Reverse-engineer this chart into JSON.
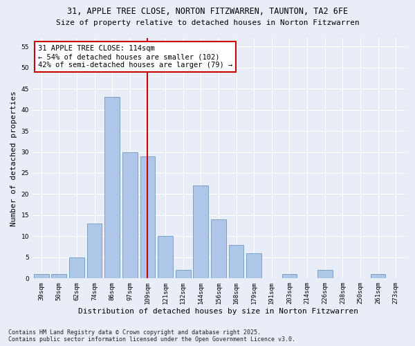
{
  "title_line1": "31, APPLE TREE CLOSE, NORTON FITZWARREN, TAUNTON, TA2 6FE",
  "title_line2": "Size of property relative to detached houses in Norton Fitzwarren",
  "xlabel": "Distribution of detached houses by size in Norton Fitzwarren",
  "ylabel": "Number of detached properties",
  "bar_labels": [
    "39sqm",
    "50sqm",
    "62sqm",
    "74sqm",
    "86sqm",
    "97sqm",
    "109sqm",
    "121sqm",
    "132sqm",
    "144sqm",
    "156sqm",
    "168sqm",
    "179sqm",
    "191sqm",
    "203sqm",
    "214sqm",
    "226sqm",
    "238sqm",
    "250sqm",
    "261sqm",
    "273sqm"
  ],
  "bar_values": [
    1,
    1,
    5,
    13,
    43,
    30,
    29,
    10,
    2,
    22,
    14,
    8,
    6,
    0,
    1,
    0,
    2,
    0,
    0,
    1,
    0
  ],
  "bar_color": "#aec6e8",
  "bar_edge_color": "#5b8db8",
  "background_color": "#e8edf8",
  "grid_color": "#ffffff",
  "vline_x": 6.0,
  "vline_color": "#cc0000",
  "annotation_text": "31 APPLE TREE CLOSE: 114sqm\n← 54% of detached houses are smaller (102)\n42% of semi-detached houses are larger (79) →",
  "annotation_box_facecolor": "#ffffff",
  "annotation_box_edgecolor": "#cc0000",
  "ylim": [
    0,
    57
  ],
  "yticks": [
    0,
    5,
    10,
    15,
    20,
    25,
    30,
    35,
    40,
    45,
    50,
    55
  ],
  "footnote": "Contains HM Land Registry data © Crown copyright and database right 2025.\nContains public sector information licensed under the Open Government Licence v3.0.",
  "title_fontsize": 8.5,
  "subtitle_fontsize": 8,
  "xlabel_fontsize": 8,
  "ylabel_fontsize": 8,
  "tick_fontsize": 6.5,
  "annotation_fontsize": 7.5,
  "footnote_fontsize": 6
}
